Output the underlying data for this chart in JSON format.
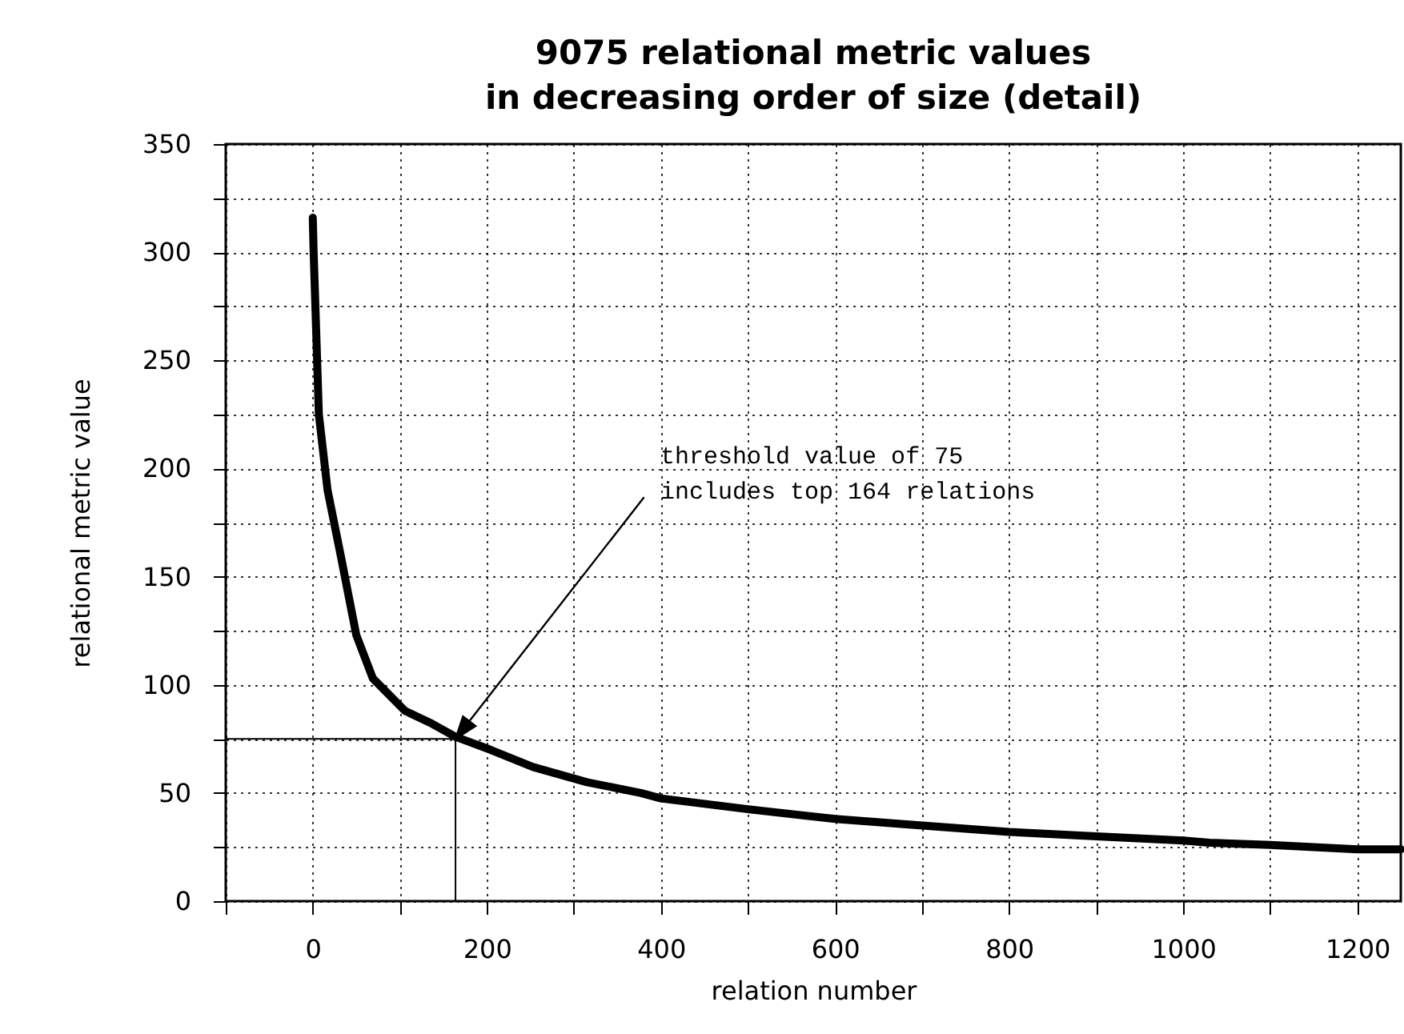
{
  "chart_data": {
    "type": "line",
    "title": "9075 relational metric values\nin decreasing order of size (detail)",
    "xlabel": "relation number",
    "ylabel": "relational metric value",
    "x": [
      0,
      1,
      7,
      17,
      32,
      50,
      69,
      106,
      137,
      164,
      204,
      253,
      315,
      377,
      400,
      500,
      600,
      700,
      800,
      900,
      1000,
      1030,
      1100,
      1200,
      1250
    ],
    "series": [
      {
        "color": "#000000",
        "values": [
          316,
          300,
          225,
          190,
          160,
          123,
          103,
          88,
          82,
          76,
          70,
          62,
          55,
          50,
          47.5,
          42.5,
          38,
          35,
          32,
          30,
          28,
          27,
          26,
          24,
          24
        ]
      }
    ],
    "xlim": [
      -100,
      1250
    ],
    "xticks": [
      {
        "value": -100,
        "label": null
      },
      0,
      {
        "value": 100,
        "label": null
      },
      200,
      {
        "value": 300,
        "label": null
      },
      400,
      {
        "value": 500,
        "label": null
      },
      600,
      {
        "value": 700,
        "label": null
      },
      800,
      {
        "value": 900,
        "label": null
      },
      1000,
      {
        "value": 1100,
        "label": null
      },
      1200
    ],
    "ylim": [
      0,
      350
    ],
    "yticks": [
      0,
      {
        "value": 25,
        "label": null
      },
      50,
      {
        "value": 75,
        "label": null
      },
      100,
      {
        "value": 125,
        "label": null
      },
      150,
      {
        "value": 175,
        "label": null
      },
      200,
      {
        "value": 225,
        "label": null
      },
      250,
      {
        "value": 275,
        "label": null
      },
      300,
      {
        "value": 325,
        "label": null
      },
      350
    ],
    "grid": true,
    "line_style": "solid",
    "ref_lines": [
      {
        "axis": "y",
        "value": 75,
        "color": "#000000"
      },
      {
        "axis": "x",
        "value": 164,
        "color": "#000000"
      }
    ],
    "annotations": [
      {
        "text": "threshold value of 75\nincludes top 164 relations",
        "x": 164,
        "y": 75
      }
    ]
  }
}
